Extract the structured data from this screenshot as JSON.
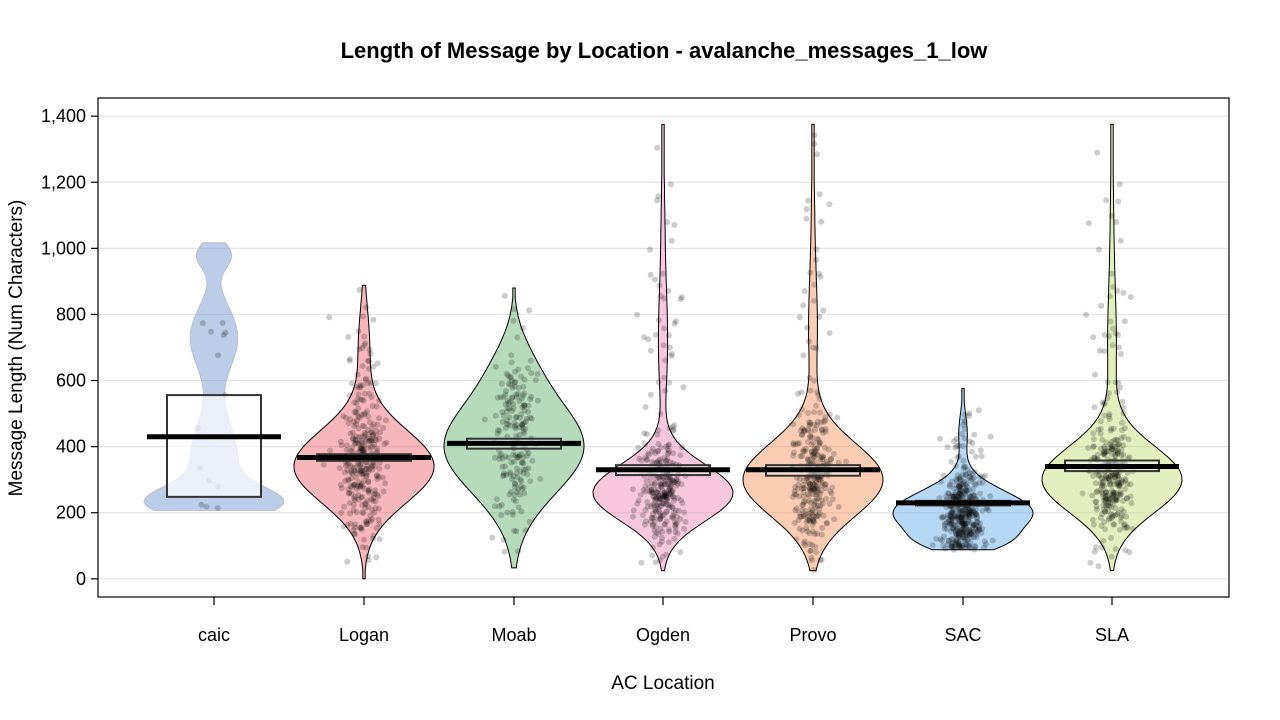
{
  "chart_data": {
    "type": "pirate",
    "title": "Length of Message by Location - avalanche_messages_1_low",
    "xlabel": "AC Location",
    "ylabel": "Message Length (Num Characters)",
    "ylim": [
      -55,
      1455
    ],
    "yticks": [
      0,
      200,
      400,
      600,
      800,
      1000,
      1200,
      1400
    ],
    "ytick_labels": [
      "0",
      "200",
      "400",
      "600",
      "800",
      "1,000",
      "1,200",
      "1,400"
    ],
    "grid": true,
    "categories": [
      {
        "name": "caic",
        "color": "#7b9ccf",
        "mean": 430,
        "box": [
          248,
          556
        ],
        "min": 207,
        "max": 1017,
        "n_points": 14
      },
      {
        "name": "Logan",
        "color": "#ef6d78",
        "mean": 367,
        "box": [
          357,
          377
        ],
        "min": 0,
        "max": 888,
        "n_points": 320
      },
      {
        "name": "Moab",
        "color": "#6fb57a",
        "mean": 410,
        "box": [
          394,
          424
        ],
        "min": 33,
        "max": 880,
        "n_points": 200
      },
      {
        "name": "Ogden",
        "color": "#ef8fbd",
        "mean": 330,
        "box": [
          314,
          344
        ],
        "min": 25,
        "max": 1375,
        "n_points": 320
      },
      {
        "name": "Provo",
        "color": "#f79a6a",
        "mean": 330,
        "box": [
          312,
          344
        ],
        "min": 25,
        "max": 1375,
        "n_points": 320
      },
      {
        "name": "SAC",
        "color": "#6eb2ea",
        "mean": 230,
        "box": [
          222,
          236
        ],
        "min": 88,
        "max": 576,
        "n_points": 420
      },
      {
        "name": "SLA",
        "color": "#c9df7f",
        "mean": 340,
        "box": [
          326,
          358
        ],
        "min": 25,
        "max": 1375,
        "n_points": 320
      }
    ]
  }
}
